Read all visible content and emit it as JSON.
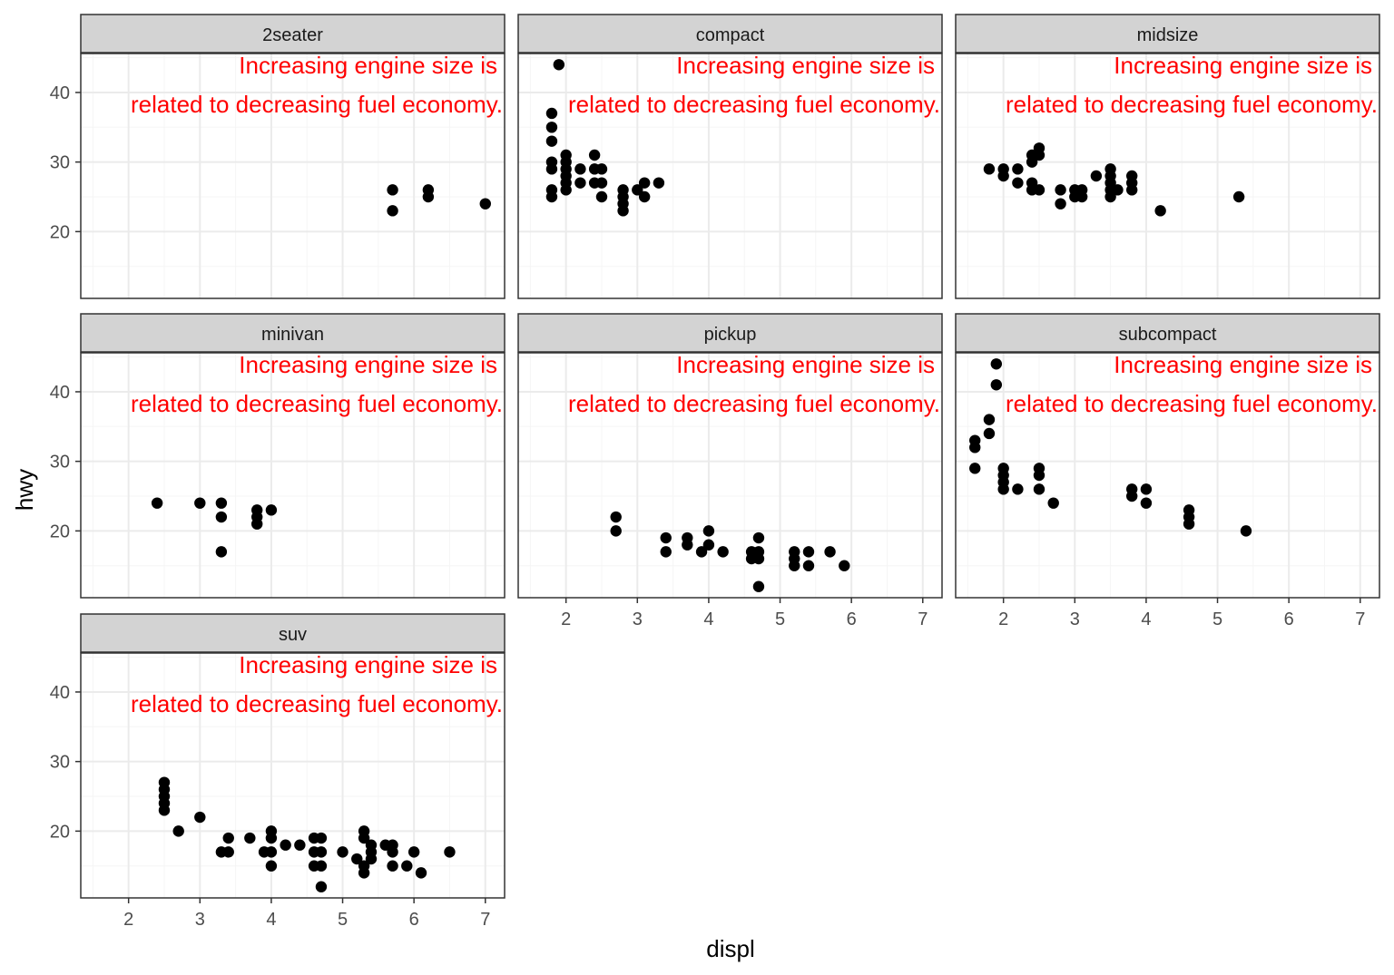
{
  "chart_data": {
    "type": "scatter",
    "xlabel": "displ",
    "ylabel": "hwy",
    "xlim": [
      1.33,
      7.27
    ],
    "ylim": [
      10.4,
      45.6
    ],
    "x_ticks": [
      2,
      3,
      4,
      5,
      6,
      7
    ],
    "y_ticks": [
      20,
      30,
      40
    ],
    "grid": true,
    "annotation": {
      "line1": "Increasing engine size is",
      "line2": "related to decreasing fuel economy.",
      "color": "#ff0000"
    },
    "colors": {
      "point": "#000000",
      "strip": "#d3d3d3",
      "grid_major": "#ebebeb",
      "grid_minor": "#f5f5f5",
      "panel_border": "#333333"
    },
    "facets": [
      {
        "label": "2seater",
        "points": [
          [
            5.7,
            26
          ],
          [
            5.7,
            23
          ],
          [
            6.2,
            26
          ],
          [
            6.2,
            25
          ],
          [
            7.0,
            24
          ]
        ]
      },
      {
        "label": "compact",
        "points": [
          [
            1.9,
            44
          ],
          [
            1.8,
            37
          ],
          [
            1.8,
            35
          ],
          [
            1.8,
            33
          ],
          [
            1.8,
            30
          ],
          [
            1.8,
            29
          ],
          [
            1.8,
            26
          ],
          [
            1.8,
            25
          ],
          [
            2.0,
            31
          ],
          [
            2.0,
            30
          ],
          [
            2.0,
            29
          ],
          [
            2.0,
            28
          ],
          [
            2.0,
            27
          ],
          [
            2.0,
            26
          ],
          [
            2.2,
            29
          ],
          [
            2.2,
            27
          ],
          [
            2.4,
            31
          ],
          [
            2.4,
            29
          ],
          [
            2.4,
            27
          ],
          [
            2.5,
            29
          ],
          [
            2.5,
            27
          ],
          [
            2.5,
            25
          ],
          [
            2.8,
            26
          ],
          [
            2.8,
            25
          ],
          [
            2.8,
            24
          ],
          [
            2.8,
            23
          ],
          [
            3.0,
            26
          ],
          [
            3.1,
            27
          ],
          [
            3.1,
            25
          ],
          [
            3.3,
            27
          ]
        ]
      },
      {
        "label": "midsize",
        "points": [
          [
            1.8,
            29
          ],
          [
            2.0,
            29
          ],
          [
            2.0,
            28
          ],
          [
            2.2,
            29
          ],
          [
            2.2,
            27
          ],
          [
            2.4,
            31
          ],
          [
            2.4,
            30
          ],
          [
            2.4,
            27
          ],
          [
            2.4,
            26
          ],
          [
            2.5,
            32
          ],
          [
            2.5,
            31
          ],
          [
            2.5,
            26
          ],
          [
            2.8,
            26
          ],
          [
            2.8,
            24
          ],
          [
            3.0,
            26
          ],
          [
            3.0,
            25
          ],
          [
            3.1,
            26
          ],
          [
            3.1,
            25
          ],
          [
            3.3,
            28
          ],
          [
            3.5,
            29
          ],
          [
            3.5,
            28
          ],
          [
            3.5,
            27
          ],
          [
            3.5,
            26
          ],
          [
            3.5,
            25
          ],
          [
            3.6,
            26
          ],
          [
            3.8,
            28
          ],
          [
            3.8,
            27
          ],
          [
            3.8,
            26
          ],
          [
            4.2,
            23
          ],
          [
            5.3,
            25
          ]
        ]
      },
      {
        "label": "minivan",
        "points": [
          [
            2.4,
            24
          ],
          [
            3.0,
            24
          ],
          [
            3.3,
            24
          ],
          [
            3.3,
            22
          ],
          [
            3.3,
            17
          ],
          [
            3.8,
            23
          ],
          [
            3.8,
            22
          ],
          [
            3.8,
            21
          ],
          [
            4.0,
            23
          ]
        ]
      },
      {
        "label": "pickup",
        "points": [
          [
            2.7,
            22
          ],
          [
            2.7,
            20
          ],
          [
            3.4,
            19
          ],
          [
            3.4,
            17
          ],
          [
            3.7,
            19
          ],
          [
            3.7,
            18
          ],
          [
            3.9,
            17
          ],
          [
            4.0,
            20
          ],
          [
            4.0,
            18
          ],
          [
            4.2,
            17
          ],
          [
            4.6,
            17
          ],
          [
            4.6,
            16
          ],
          [
            4.7,
            19
          ],
          [
            4.7,
            17
          ],
          [
            4.7,
            16
          ],
          [
            4.7,
            12
          ],
          [
            5.2,
            17
          ],
          [
            5.2,
            16
          ],
          [
            5.2,
            15
          ],
          [
            5.4,
            17
          ],
          [
            5.4,
            15
          ],
          [
            5.7,
            17
          ],
          [
            5.9,
            15
          ]
        ]
      },
      {
        "label": "subcompact",
        "points": [
          [
            1.6,
            33
          ],
          [
            1.6,
            32
          ],
          [
            1.6,
            29
          ],
          [
            1.8,
            36
          ],
          [
            1.8,
            34
          ],
          [
            1.9,
            44
          ],
          [
            1.9,
            41
          ],
          [
            2.0,
            29
          ],
          [
            2.0,
            28
          ],
          [
            2.0,
            27
          ],
          [
            2.0,
            26
          ],
          [
            2.2,
            26
          ],
          [
            2.5,
            29
          ],
          [
            2.5,
            28
          ],
          [
            2.5,
            26
          ],
          [
            2.7,
            24
          ],
          [
            3.8,
            26
          ],
          [
            3.8,
            25
          ],
          [
            4.0,
            26
          ],
          [
            4.0,
            24
          ],
          [
            4.6,
            23
          ],
          [
            4.6,
            22
          ],
          [
            4.6,
            21
          ],
          [
            5.4,
            20
          ]
        ]
      },
      {
        "label": "suv",
        "points": [
          [
            2.5,
            27
          ],
          [
            2.5,
            26
          ],
          [
            2.5,
            25
          ],
          [
            2.5,
            24
          ],
          [
            2.5,
            23
          ],
          [
            2.7,
            20
          ],
          [
            3.0,
            22
          ],
          [
            3.3,
            17
          ],
          [
            3.4,
            19
          ],
          [
            3.4,
            17
          ],
          [
            3.7,
            19
          ],
          [
            3.9,
            17
          ],
          [
            4.0,
            20
          ],
          [
            4.0,
            19
          ],
          [
            4.0,
            17
          ],
          [
            4.0,
            15
          ],
          [
            4.2,
            18
          ],
          [
            4.4,
            18
          ],
          [
            4.6,
            19
          ],
          [
            4.6,
            17
          ],
          [
            4.6,
            15
          ],
          [
            4.7,
            19
          ],
          [
            4.7,
            17
          ],
          [
            4.7,
            15
          ],
          [
            4.7,
            12
          ],
          [
            5.0,
            17
          ],
          [
            5.2,
            16
          ],
          [
            5.3,
            20
          ],
          [
            5.3,
            19
          ],
          [
            5.3,
            15
          ],
          [
            5.3,
            14
          ],
          [
            5.4,
            18
          ],
          [
            5.4,
            17
          ],
          [
            5.4,
            16
          ],
          [
            5.6,
            18
          ],
          [
            5.7,
            18
          ],
          [
            5.7,
            17
          ],
          [
            5.7,
            15
          ],
          [
            5.9,
            15
          ],
          [
            6.0,
            17
          ],
          [
            6.1,
            14
          ],
          [
            6.5,
            17
          ]
        ]
      }
    ]
  }
}
